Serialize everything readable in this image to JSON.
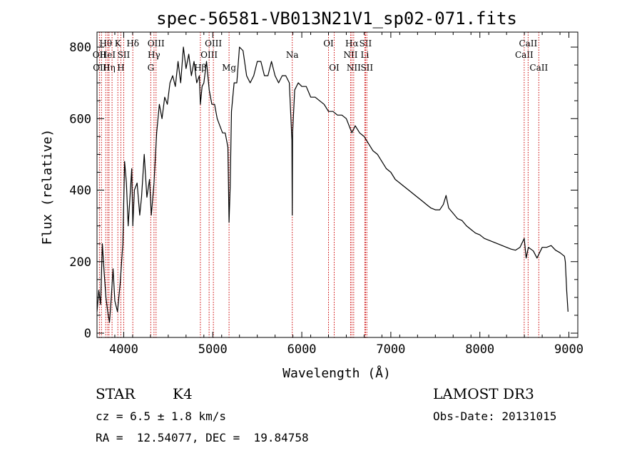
{
  "chart_data": {
    "type": "line",
    "title": "spec-56581-VB013N21V1_sp02-071.fits",
    "xlabel": "Wavelength (Å)",
    "ylabel": "Flux (relative)",
    "xlim": [
      3700,
      9100
    ],
    "ylim": [
      0,
      820
    ],
    "xticks": [
      4000,
      5000,
      6000,
      7000,
      8000,
      9000
    ],
    "yticks": [
      0,
      200,
      400,
      600,
      800
    ],
    "series": [
      {
        "name": "flux",
        "points": [
          [
            3700,
            60
          ],
          [
            3720,
            120
          ],
          [
            3740,
            80
          ],
          [
            3760,
            250
          ],
          [
            3780,
            170
          ],
          [
            3800,
            100
          ],
          [
            3820,
            60
          ],
          [
            3840,
            30
          ],
          [
            3860,
            100
          ],
          [
            3880,
            180
          ],
          [
            3900,
            90
          ],
          [
            3930,
            60
          ],
          [
            3960,
            140
          ],
          [
            3990,
            250
          ],
          [
            4010,
            480
          ],
          [
            4030,
            420
          ],
          [
            4050,
            300
          ],
          [
            4070,
            380
          ],
          [
            4090,
            460
          ],
          [
            4102,
            300
          ],
          [
            4120,
            400
          ],
          [
            4150,
            420
          ],
          [
            4180,
            330
          ],
          [
            4200,
            380
          ],
          [
            4230,
            500
          ],
          [
            4260,
            380
          ],
          [
            4290,
            430
          ],
          [
            4310,
            330
          ],
          [
            4340,
            420
          ],
          [
            4370,
            560
          ],
          [
            4400,
            640
          ],
          [
            4430,
            600
          ],
          [
            4460,
            660
          ],
          [
            4490,
            640
          ],
          [
            4520,
            700
          ],
          [
            4550,
            720
          ],
          [
            4580,
            690
          ],
          [
            4610,
            760
          ],
          [
            4640,
            700
          ],
          [
            4670,
            800
          ],
          [
            4700,
            740
          ],
          [
            4730,
            780
          ],
          [
            4760,
            720
          ],
          [
            4790,
            760
          ],
          [
            4820,
            700
          ],
          [
            4850,
            720
          ],
          [
            4861,
            640
          ],
          [
            4880,
            690
          ],
          [
            4900,
            700
          ],
          [
            4930,
            760
          ],
          [
            4960,
            680
          ],
          [
            4990,
            640
          ],
          [
            5020,
            640
          ],
          [
            5050,
            600
          ],
          [
            5080,
            580
          ],
          [
            5110,
            560
          ],
          [
            5140,
            560
          ],
          [
            5170,
            520
          ],
          [
            5183,
            310
          ],
          [
            5196,
            410
          ],
          [
            5210,
            620
          ],
          [
            5240,
            700
          ],
          [
            5270,
            700
          ],
          [
            5300,
            800
          ],
          [
            5340,
            790
          ],
          [
            5380,
            720
          ],
          [
            5420,
            700
          ],
          [
            5460,
            720
          ],
          [
            5500,
            760
          ],
          [
            5540,
            760
          ],
          [
            5580,
            720
          ],
          [
            5620,
            720
          ],
          [
            5660,
            760
          ],
          [
            5700,
            720
          ],
          [
            5740,
            700
          ],
          [
            5780,
            720
          ],
          [
            5820,
            720
          ],
          [
            5860,
            700
          ],
          [
            5889,
            540
          ],
          [
            5893,
            330
          ],
          [
            5897,
            560
          ],
          [
            5920,
            680
          ],
          [
            5960,
            700
          ],
          [
            6000,
            690
          ],
          [
            6050,
            690
          ],
          [
            6100,
            660
          ],
          [
            6150,
            660
          ],
          [
            6200,
            650
          ],
          [
            6250,
            640
          ],
          [
            6300,
            620
          ],
          [
            6350,
            620
          ],
          [
            6400,
            610
          ],
          [
            6450,
            610
          ],
          [
            6500,
            600
          ],
          [
            6563,
            560
          ],
          [
            6600,
            580
          ],
          [
            6650,
            560
          ],
          [
            6700,
            550
          ],
          [
            6750,
            530
          ],
          [
            6800,
            510
          ],
          [
            6850,
            500
          ],
          [
            6900,
            480
          ],
          [
            6950,
            460
          ],
          [
            7000,
            450
          ],
          [
            7050,
            430
          ],
          [
            7100,
            420
          ],
          [
            7150,
            410
          ],
          [
            7200,
            400
          ],
          [
            7250,
            390
          ],
          [
            7300,
            380
          ],
          [
            7350,
            370
          ],
          [
            7400,
            360
          ],
          [
            7450,
            350
          ],
          [
            7500,
            345
          ],
          [
            7550,
            345
          ],
          [
            7590,
            360
          ],
          [
            7620,
            385
          ],
          [
            7650,
            350
          ],
          [
            7700,
            335
          ],
          [
            7750,
            320
          ],
          [
            7800,
            315
          ],
          [
            7850,
            300
          ],
          [
            7900,
            290
          ],
          [
            7950,
            280
          ],
          [
            8000,
            275
          ],
          [
            8050,
            265
          ],
          [
            8100,
            260
          ],
          [
            8150,
            255
          ],
          [
            8200,
            250
          ],
          [
            8250,
            245
          ],
          [
            8300,
            240
          ],
          [
            8350,
            235
          ],
          [
            8400,
            232
          ],
          [
            8450,
            240
          ],
          [
            8498,
            265
          ],
          [
            8520,
            210
          ],
          [
            8545,
            240
          ],
          [
            8600,
            230
          ],
          [
            8642,
            210
          ],
          [
            8700,
            240
          ],
          [
            8750,
            240
          ],
          [
            8800,
            245
          ],
          [
            8850,
            232
          ],
          [
            8900,
            225
          ],
          [
            8950,
            215
          ],
          [
            8960,
            200
          ],
          [
            8975,
            120
          ],
          [
            8990,
            60
          ]
        ]
      }
    ],
    "emission_lines": [
      {
        "wavelength": 3727,
        "label": "OII",
        "row": 1
      },
      {
        "wavelength": 3750,
        "label": "OIII",
        "row": 2
      },
      {
        "wavelength": 3798,
        "label": "Hθ",
        "row": 0
      },
      {
        "wavelength": 3820,
        "label": "HeI",
        "row": 1
      },
      {
        "wavelength": 3835,
        "label": "Hη",
        "row": 2
      },
      {
        "wavelength": 3869,
        "label": "",
        "row": 0
      },
      {
        "wavelength": 3934,
        "label": "K",
        "row": 0
      },
      {
        "wavelength": 3968,
        "label": "H",
        "row": 2
      },
      {
        "wavelength": 4000,
        "label": "SII",
        "row": 1
      },
      {
        "wavelength": 4102,
        "label": "Hδ",
        "row": 0
      },
      {
        "wavelength": 4304,
        "label": "G",
        "row": 2
      },
      {
        "wavelength": 4340,
        "label": "Hγ",
        "row": 1
      },
      {
        "wavelength": 4363,
        "label": "OIII",
        "row": 0
      },
      {
        "wavelength": 4861,
        "label": "Hβ",
        "row": 2
      },
      {
        "wavelength": 4959,
        "label": "OIII",
        "row": 1
      },
      {
        "wavelength": 5007,
        "label": "OIII",
        "row": 0
      },
      {
        "wavelength": 5183,
        "label": "Mg",
        "row": 2
      },
      {
        "wavelength": 5893,
        "label": "Na",
        "row": 1
      },
      {
        "wavelength": 6300,
        "label": "OI",
        "row": 0
      },
      {
        "wavelength": 6364,
        "label": "OI",
        "row": 2
      },
      {
        "wavelength": 6548,
        "label": "NII",
        "row": 1
      },
      {
        "wavelength": 6563,
        "label": "Hα",
        "row": 0
      },
      {
        "wavelength": 6583,
        "label": "NII",
        "row": 2
      },
      {
        "wavelength": 6708,
        "label": "Li",
        "row": 1
      },
      {
        "wavelength": 6716,
        "label": "SII",
        "row": 0
      },
      {
        "wavelength": 6731,
        "label": "SII",
        "row": 2
      },
      {
        "wavelength": 8498,
        "label": "CaII",
        "row": 1
      },
      {
        "wavelength": 8542,
        "label": "CaII",
        "row": 0
      },
      {
        "wavelength": 8662,
        "label": "CaII",
        "row": 2
      }
    ],
    "line_color": "#000000",
    "marker_color": "#cc0000"
  },
  "footer": {
    "object_type": "STAR",
    "subclass": "K4",
    "survey": "LAMOST DR3",
    "cz": "cz = 6.5 ± 1.8 km/s",
    "obs_date": "Obs-Date: 20131015",
    "coords": "RA =  12.54077, DEC =  19.84758"
  }
}
